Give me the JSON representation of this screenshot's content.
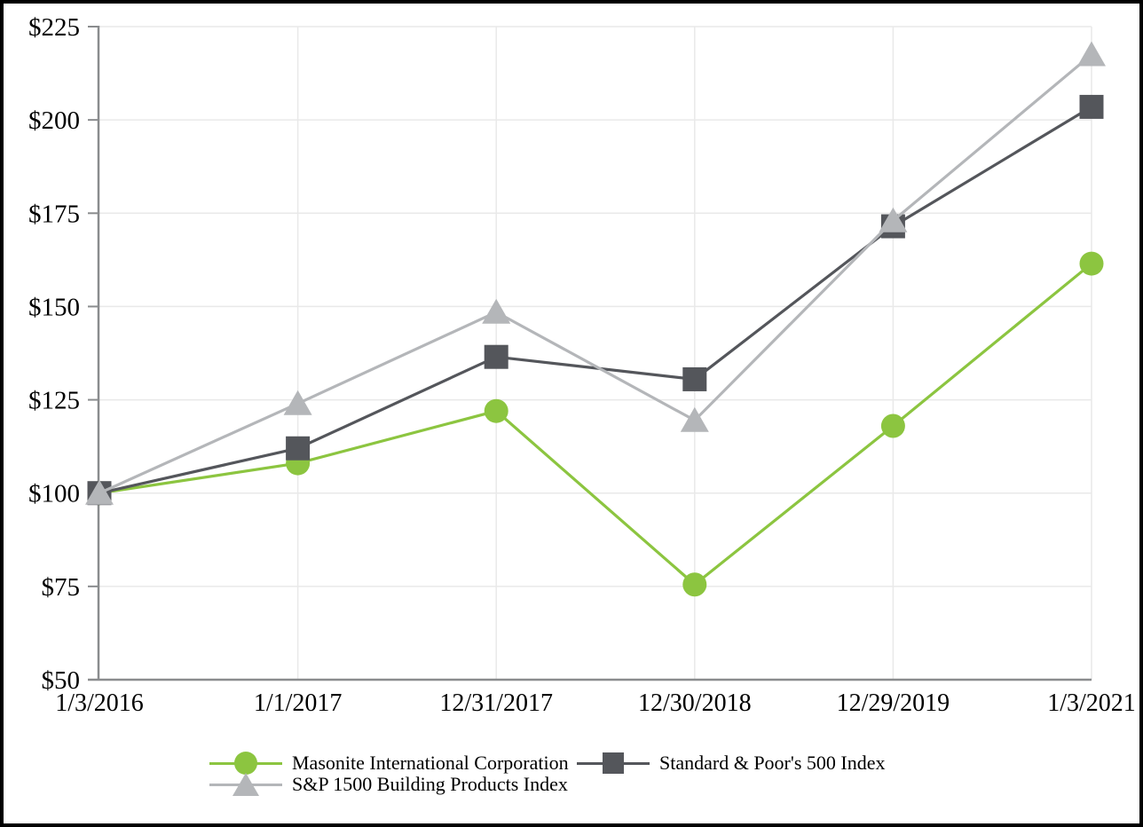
{
  "frame": {
    "background_color": "#FFFFFF",
    "border_color": "#000000"
  },
  "chart_data": {
    "type": "line",
    "title": "",
    "categories": [
      "1/3/2016",
      "1/1/2017",
      "12/31/2017",
      "12/30/2018",
      "12/29/2019",
      "1/3/2021"
    ],
    "series": [
      {
        "name": "Masonite International Corporation",
        "marker": "circle",
        "color": "#8CC540",
        "values": [
          100,
          108,
          122,
          75.5,
          118,
          161.5
        ]
      },
      {
        "name": "Standard & Poor's 500 Index",
        "marker": "square",
        "color": "#54565B",
        "values": [
          100,
          112,
          136.5,
          130.5,
          171.5,
          203.5
        ]
      },
      {
        "name": "S&P 1500 Building Products Index",
        "marker": "triangle",
        "color": "#B4B6B9",
        "values": [
          100,
          124,
          148.5,
          119.5,
          173,
          217.5
        ]
      }
    ],
    "ylim": [
      50,
      225
    ],
    "ytick_step": 25,
    "ytick_prefix": "$",
    "ytick_labels": [
      "$50",
      "$75",
      "$100",
      "$125",
      "$150",
      "$175",
      "$200",
      "$225"
    ],
    "grid": true,
    "legend_position": "bottom",
    "axis_color": "#8A8C8E",
    "grid_color": "#E9E9E9",
    "text_color": "#000000"
  }
}
